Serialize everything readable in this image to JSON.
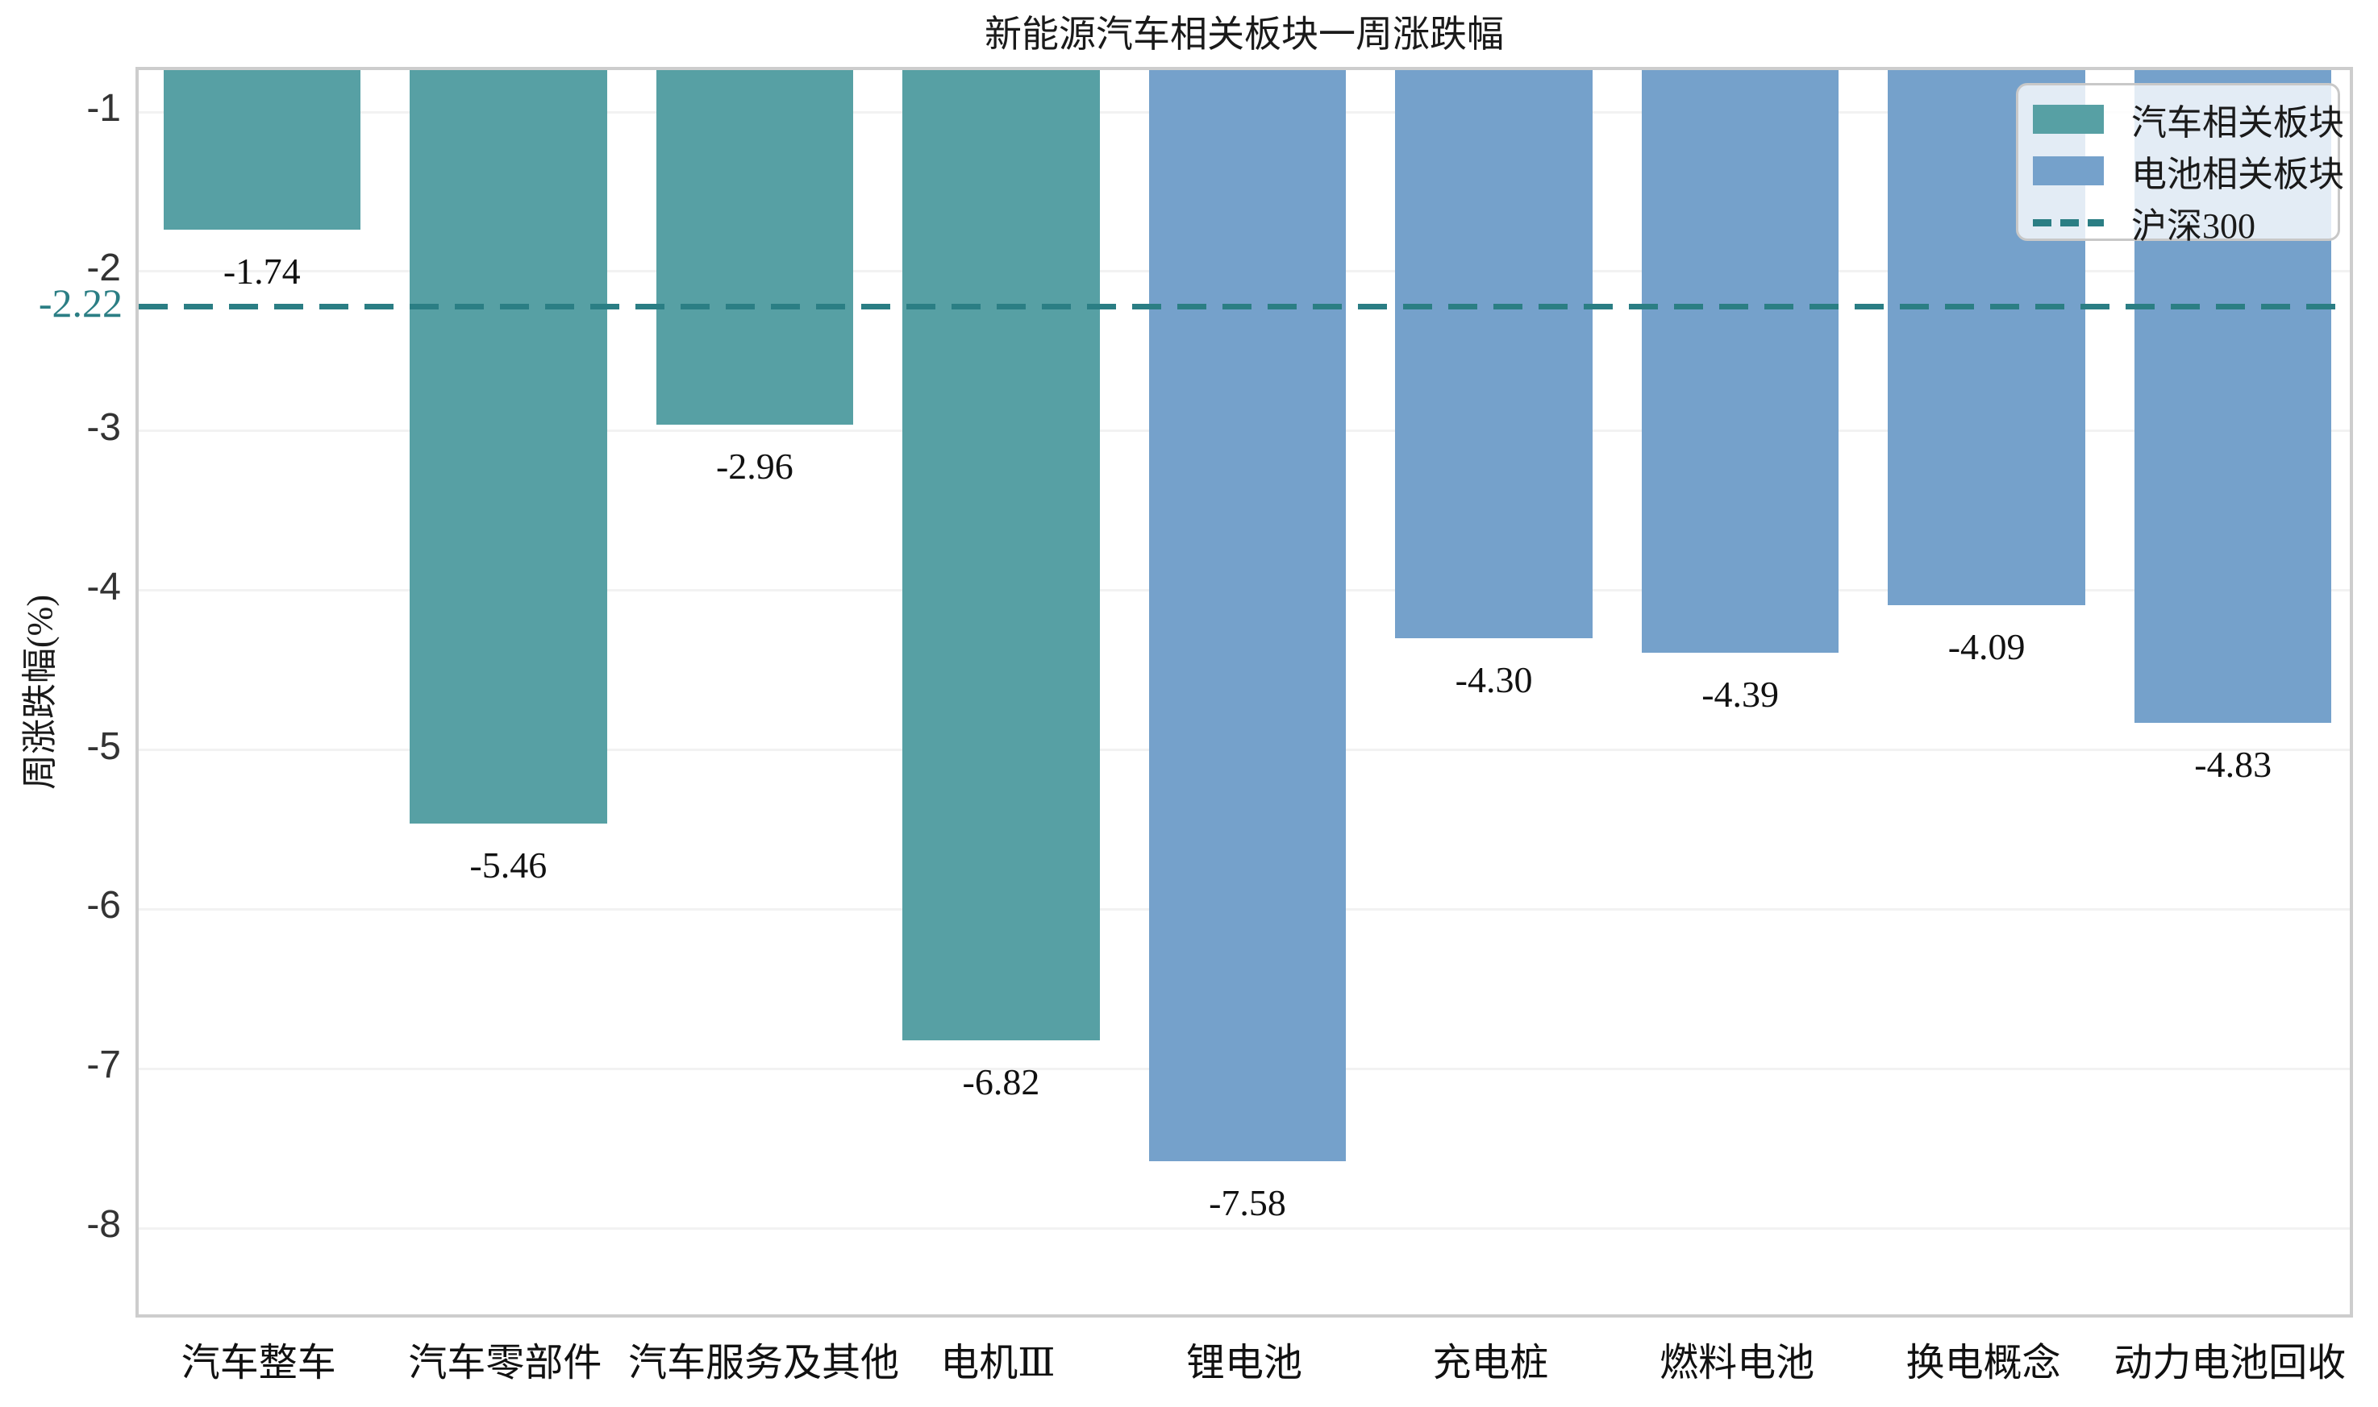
{
  "chart_data": {
    "type": "bar",
    "title": "新能源汽车相关板块一周涨跌幅",
    "xlabel": "",
    "ylabel": "周涨跌幅(%)",
    "categories": [
      "汽车整车",
      "汽车零部件",
      "汽车服务及其他",
      "电机Ⅲ",
      "锂电池",
      "充电桩",
      "燃料电池",
      "换电概念",
      "动力电池回收"
    ],
    "values": [
      -1.74,
      -5.46,
      -2.96,
      -6.82,
      -7.58,
      -4.3,
      -4.39,
      -4.09,
      -4.83
    ],
    "value_labels": [
      "-1.74",
      "-5.46",
      "-2.96",
      "-6.82",
      "-7.58",
      "-4.30",
      "-4.39",
      "-4.09",
      "-4.83"
    ],
    "series": [
      {
        "name": "汽车相关板块",
        "color": "#57A0A4",
        "indices": [
          0,
          1,
          2,
          3
        ]
      },
      {
        "name": "电池相关板块",
        "color": "#75A1CB",
        "indices": [
          4,
          5,
          6,
          7,
          8
        ]
      }
    ],
    "reference_line": {
      "name": "沪深300",
      "value": -2.22,
      "label": "-2.22",
      "color": "#2B7E84",
      "style": "dashed"
    },
    "yticks": [
      -1,
      -2,
      -3,
      -4,
      -5,
      -6,
      -7,
      -8
    ],
    "ylim": [
      -8.58,
      -0.737
    ],
    "grid": true,
    "legend_position": "upper right"
  }
}
